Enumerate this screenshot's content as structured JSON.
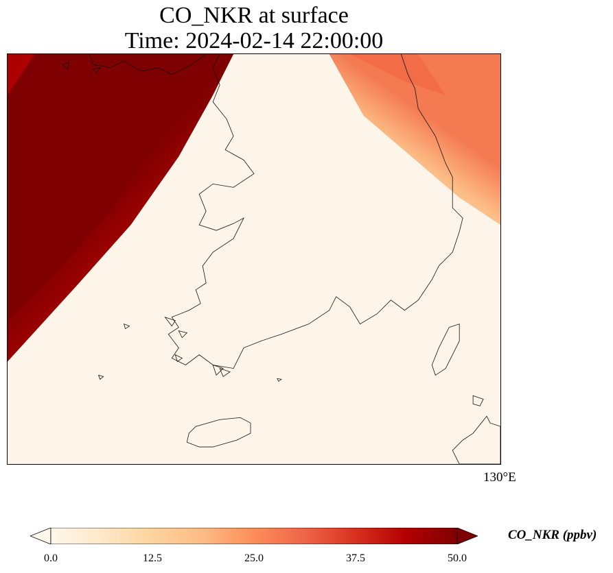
{
  "title": {
    "line1": "CO_NKR at surface",
    "line2": "Time: 2024-02-14 22:00:00"
  },
  "map": {
    "longitude_tick_label": "130°E",
    "field_description": "high concentrations over the Yellow Sea in the northwest and along the upper east coast; low over the Korean peninsula and southern seas"
  },
  "colorbar": {
    "min": 0.0,
    "max": 50.0,
    "extend": "both",
    "colormap": "OrRd",
    "colors": [
      "#fff7ec",
      "#fee8c8",
      "#fdd49e",
      "#fdbb84",
      "#fc8d59",
      "#ef6548",
      "#d7301f",
      "#b30000",
      "#7f0000"
    ],
    "ticks": [
      {
        "value": 0.0,
        "label": "0.0"
      },
      {
        "value": 12.5,
        "label": "12.5"
      },
      {
        "value": 25.0,
        "label": "25.0"
      },
      {
        "value": 37.5,
        "label": "37.5"
      },
      {
        "value": 50.0,
        "label": "50.0"
      }
    ],
    "units_label": "CO_NKR (ppbv)"
  }
}
